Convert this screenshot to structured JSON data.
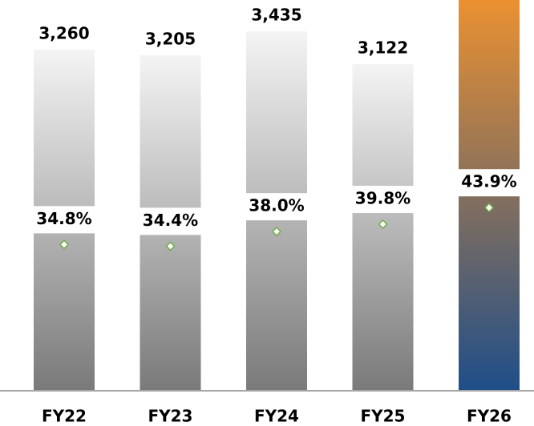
{
  "chart_data": {
    "type": "bar",
    "categories": [
      "FY22",
      "FY23",
      "FY24",
      "FY25",
      "FY26"
    ],
    "series": [
      {
        "values": [
          3260,
          3205,
          3435,
          3122,
          3800
        ],
        "value_labels": [
          "3,260",
          "3,205",
          "3,435",
          "3,122",
          null
        ],
        "colors": [
          [
            "#f4f4f4",
            "#7a7a7a"
          ],
          [
            "#f4f4f4",
            "#7a7a7a"
          ],
          [
            "#f4f4f4",
            "#7a7a7a"
          ],
          [
            "#f4f4f4",
            "#7a7a7a"
          ],
          [
            "#ee9230",
            "#1f4e89"
          ]
        ]
      },
      {
        "type": "scatter",
        "axis": "y2",
        "color": "#70ad47",
        "values": [
          34.8,
          34.4,
          38.0,
          39.8,
          43.9
        ],
        "value_labels": [
          "34.8%",
          "34.4%",
          "38.0%",
          "39.8%",
          "43.9%"
        ]
      }
    ],
    "ylim": [
      0,
      3735
    ],
    "y2lim": [
      -1,
      95
    ]
  }
}
